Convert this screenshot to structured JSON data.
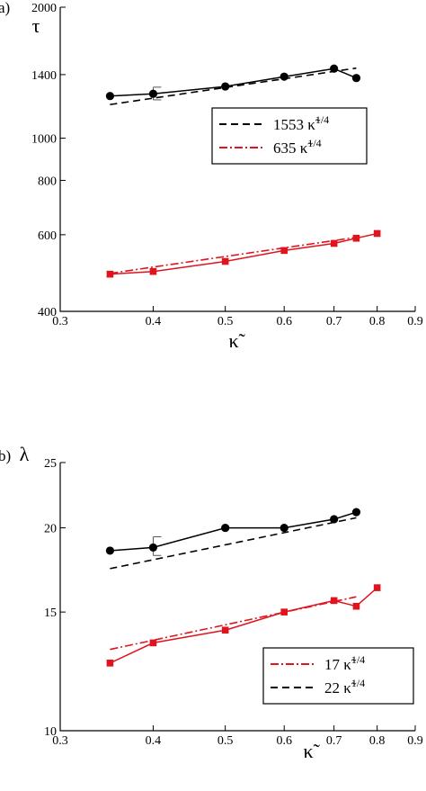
{
  "chart_data": [
    {
      "panel": "a)",
      "type": "line",
      "ylabel": "τ",
      "xlabel": "κ̃",
      "xlim": [
        0.3,
        0.9
      ],
      "ylim": [
        400,
        2000
      ],
      "log_scale": "both",
      "x_ticks": [
        0.3,
        0.4,
        0.5,
        0.6,
        0.7,
        0.8,
        0.9
      ],
      "x_tick_labels": [
        "0.3",
        "0.4",
        "0.5",
        "0.6",
        "0.7",
        "0.8",
        "0.9"
      ],
      "y_ticks": [
        400,
        600,
        800,
        1000,
        1400,
        2000
      ],
      "y_tick_labels": [
        "400",
        "600",
        "800",
        "1000",
        "1400",
        "2000"
      ],
      "series": [
        {
          "color": "#000000",
          "marker": "circle",
          "x": [
            0.35,
            0.4,
            0.5,
            0.6,
            0.7,
            0.75
          ],
          "y": [
            1250,
            1265,
            1315,
            1385,
            1445,
            1375
          ],
          "error_bar": {
            "x": 0.4,
            "low": 1225,
            "high": 1310
          }
        },
        {
          "name": "1553 κ̃^1/4",
          "color": "#000000",
          "dash": "8,5",
          "fit": true,
          "x": [
            0.35,
            0.75
          ],
          "y": [
            1195,
            1449
          ]
        },
        {
          "color": "#e0141e",
          "marker": "square",
          "x": [
            0.35,
            0.4,
            0.5,
            0.6,
            0.7,
            0.75,
            0.8
          ],
          "y": [
            487,
            494,
            521,
            552,
            573,
            589,
            604
          ]
        },
        {
          "name": "635 κ̃^1/4",
          "color": "#e0141e",
          "dash": "9,3,2,3",
          "fit": true,
          "x": [
            0.35,
            0.75
          ],
          "y": [
            489,
            592
          ]
        }
      ],
      "legend": [
        {
          "coef": "1553",
          "color": "#000000",
          "dash": "8,5"
        },
        {
          "coef": "635",
          "color": "#e0141e",
          "dash": "9,3,2,3"
        }
      ],
      "legend_placement": "center-right",
      "grid": false
    },
    {
      "panel": "b)",
      "type": "line",
      "ylabel": "λ",
      "xlabel": "κ̃",
      "xlim": [
        0.3,
        0.9
      ],
      "ylim": [
        10,
        25
      ],
      "log_scale": "both",
      "x_ticks": [
        0.3,
        0.4,
        0.5,
        0.6,
        0.7,
        0.8,
        0.9
      ],
      "x_tick_labels": [
        "0.3",
        "0.4",
        "0.5",
        "0.6",
        "0.7",
        "0.8",
        "0.9"
      ],
      "y_ticks": [
        10,
        15,
        20,
        25
      ],
      "y_tick_labels": [
        "10",
        "15",
        "20",
        "25"
      ],
      "series": [
        {
          "color": "#000000",
          "marker": "circle",
          "x": [
            0.35,
            0.4,
            0.5,
            0.6,
            0.7,
            0.75
          ],
          "y": [
            18.5,
            18.7,
            20.0,
            20.0,
            20.6,
            21.1
          ],
          "error_bar": {
            "x": 0.4,
            "low": 18.2,
            "high": 19.4
          }
        },
        {
          "name": "22 κ̃^1/4",
          "color": "#000000",
          "dash": "8,5",
          "fit": true,
          "x": [
            0.35,
            0.75
          ],
          "y": [
            17.4,
            20.7
          ]
        },
        {
          "color": "#e0141e",
          "marker": "square",
          "x": [
            0.35,
            0.4,
            0.5,
            0.6,
            0.7,
            0.75,
            0.8
          ],
          "y": [
            12.6,
            13.5,
            14.1,
            15.0,
            15.6,
            15.3,
            16.3
          ]
        },
        {
          "name": "17 κ̃^1/4",
          "color": "#e0141e",
          "dash": "9,3,2,3",
          "fit": true,
          "x": [
            0.35,
            0.75
          ],
          "y": [
            13.2,
            15.8
          ]
        }
      ],
      "legend": [
        {
          "coef": "17",
          "color": "#e0141e",
          "dash": "9,3,2,3"
        },
        {
          "coef": "22",
          "color": "#000000",
          "dash": "8,5"
        }
      ],
      "legend_placement": "bottom-right",
      "grid": false
    }
  ]
}
